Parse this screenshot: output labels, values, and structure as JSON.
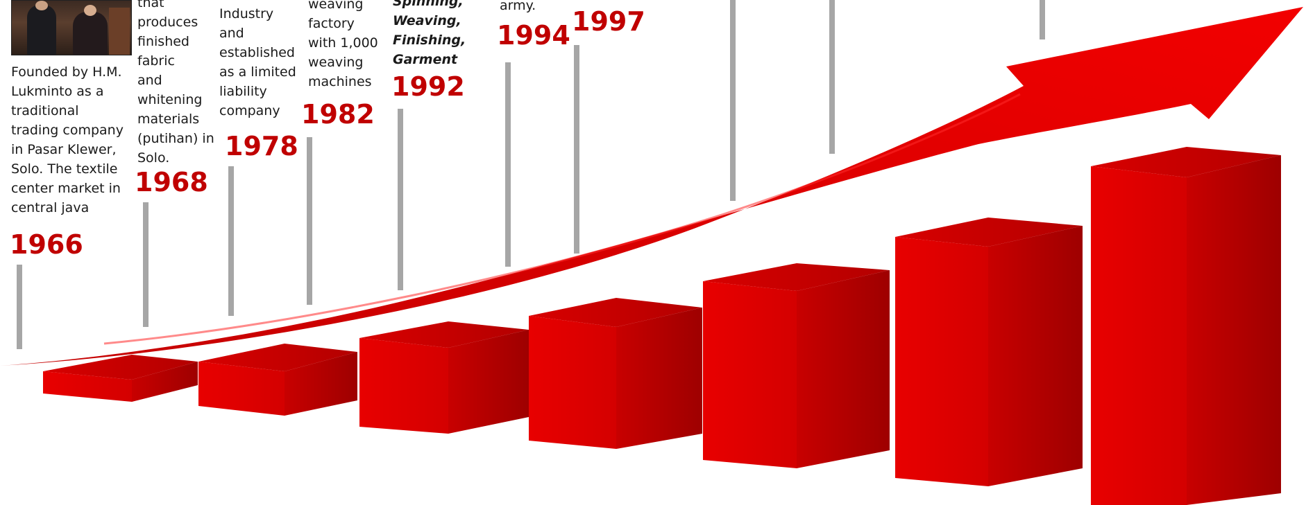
{
  "colors": {
    "accent_red": "#c00000",
    "bar_red": "#e00000",
    "stem_grey": "#a6a6a6",
    "text": "#1a1a1a"
  },
  "photo": {
    "icon": "founders-photo"
  },
  "milestones": [
    {
      "year": "1966",
      "lines": [
        "Founded by H.M.",
        "Lukminto as a",
        "traditional",
        "trading company",
        "in Pasar Klewer,",
        "Solo. The textile",
        "center market in",
        "central java"
      ]
    },
    {
      "year": "1968",
      "lines": [
        "that",
        "produces",
        "finished",
        "fabric",
        "and",
        "whitening",
        "materials",
        "(putihan) in",
        "Solo."
      ]
    },
    {
      "year": "1978",
      "lines": [
        "Industry",
        "and",
        "established",
        "as a limited",
        "liability",
        "company"
      ]
    },
    {
      "year": "1982",
      "lines": [
        "weaving",
        "factory",
        "with 1,000",
        "weaving",
        "machines"
      ]
    },
    {
      "year": "1992",
      "lines": [
        "Spinning,",
        "Weaving,",
        "Finishing,",
        "Garment"
      ]
    },
    {
      "year": "1994",
      "lines": [
        "army."
      ]
    },
    {
      "year": "1997",
      "lines": []
    }
  ]
}
